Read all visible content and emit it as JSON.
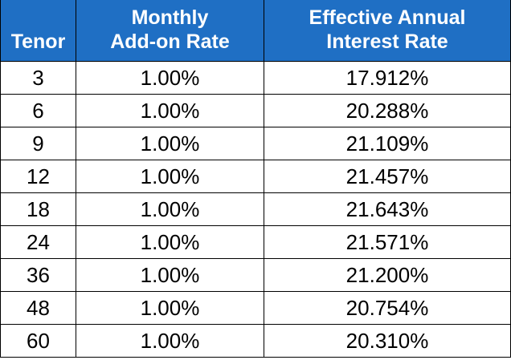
{
  "table": {
    "headers": [
      {
        "line1": "",
        "line2": "Tenor"
      },
      {
        "line1": "Monthly",
        "line2": "Add-on Rate"
      },
      {
        "line1": "Effective Annual",
        "line2": "Interest Rate"
      }
    ],
    "rows": [
      {
        "tenor": "3",
        "monthly_rate": "1.00%",
        "effective_rate": "17.912%"
      },
      {
        "tenor": "6",
        "monthly_rate": "1.00%",
        "effective_rate": "20.288%"
      },
      {
        "tenor": "9",
        "monthly_rate": "1.00%",
        "effective_rate": "21.109%"
      },
      {
        "tenor": "12",
        "monthly_rate": "1.00%",
        "effective_rate": "21.457%"
      },
      {
        "tenor": "18",
        "monthly_rate": "1.00%",
        "effective_rate": "21.643%"
      },
      {
        "tenor": "24",
        "monthly_rate": "1.00%",
        "effective_rate": "21.571%"
      },
      {
        "tenor": "36",
        "monthly_rate": "1.00%",
        "effective_rate": "21.200%"
      },
      {
        "tenor": "48",
        "monthly_rate": "1.00%",
        "effective_rate": "20.754%"
      },
      {
        "tenor": "60",
        "monthly_rate": "1.00%",
        "effective_rate": "20.310%"
      }
    ],
    "colors": {
      "header_background": "#1f6fc4",
      "header_text": "#ffffff",
      "border": "#000000",
      "body_text": "#000000"
    }
  }
}
